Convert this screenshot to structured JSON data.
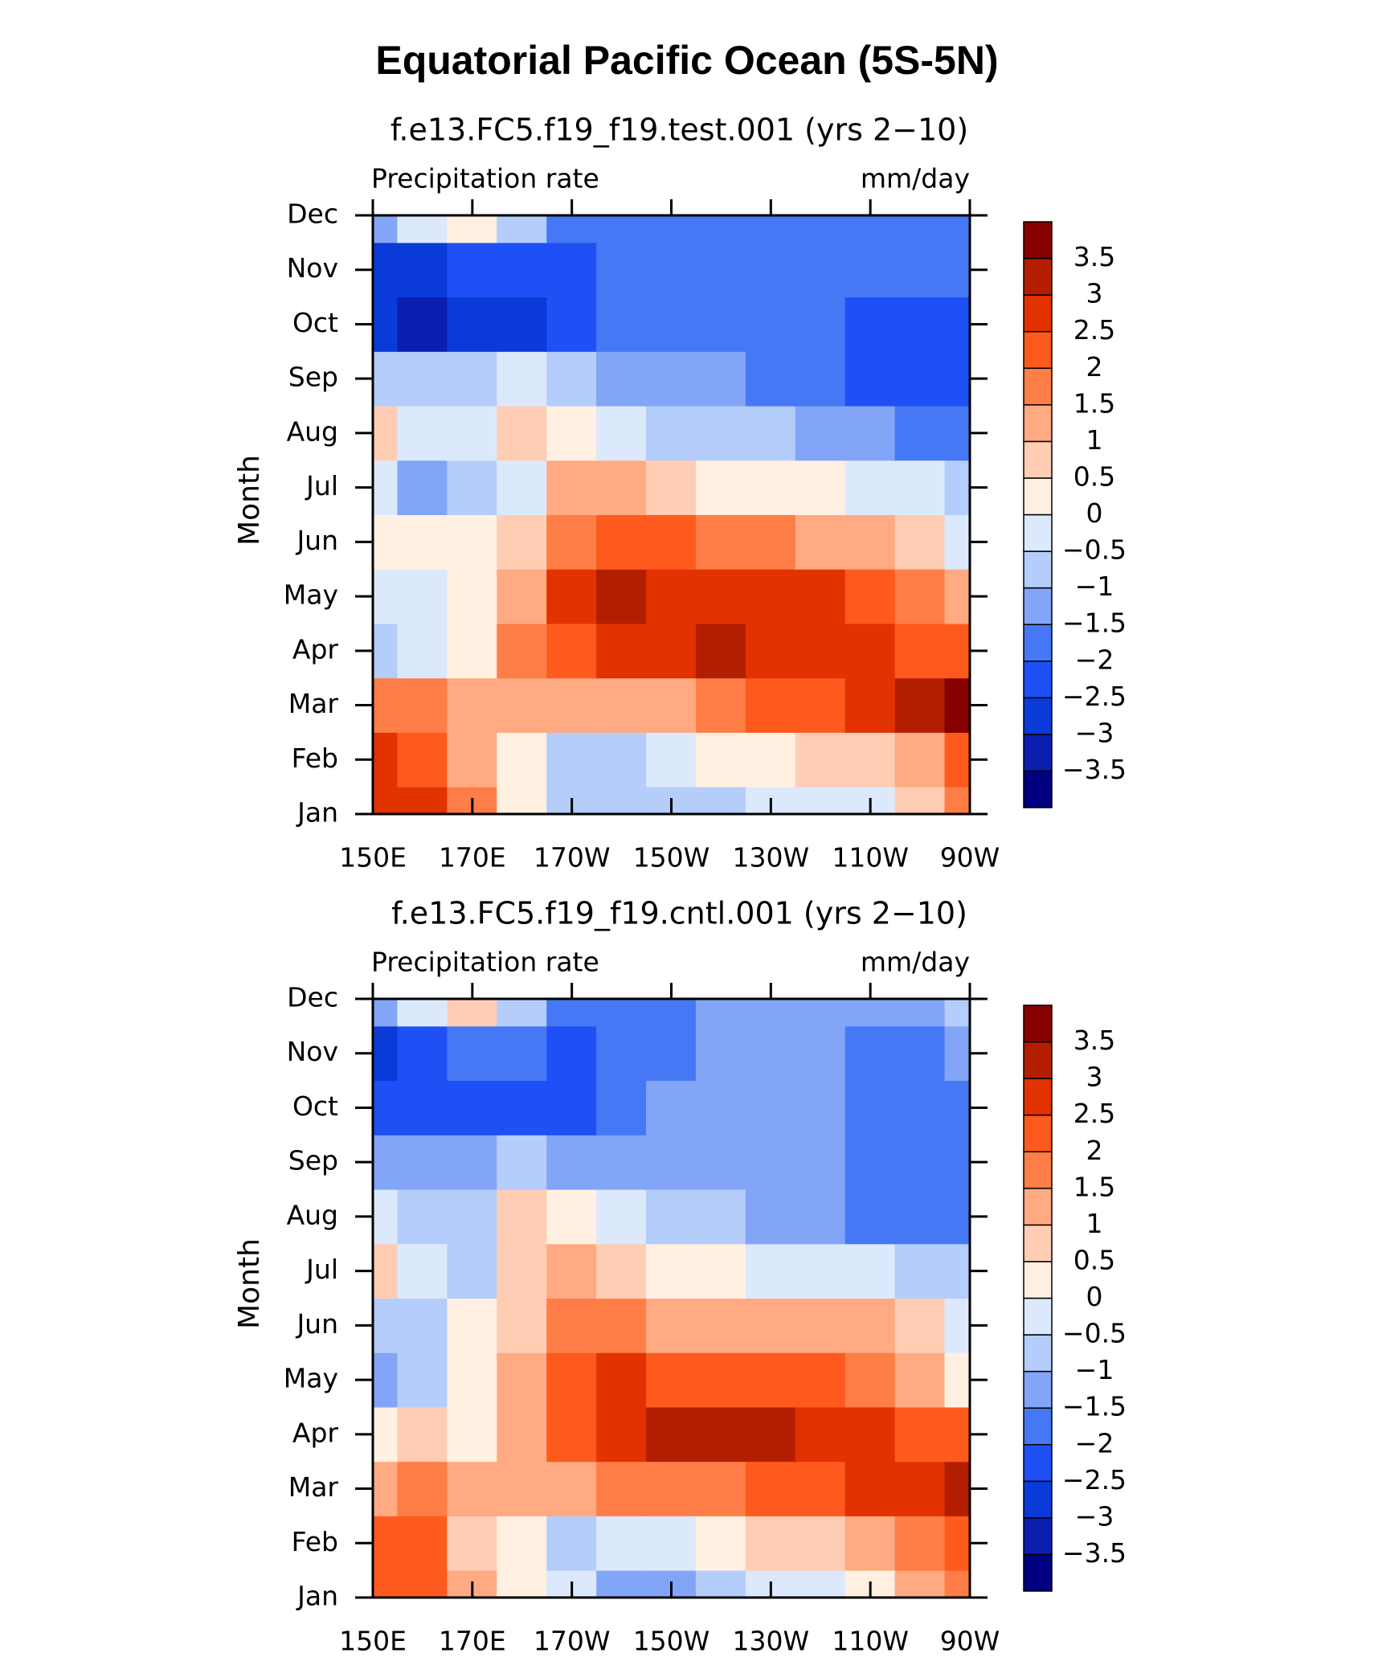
{
  "title": "Equatorial Pacific Ocean (5S-5N)",
  "chart_data": [
    {
      "type": "contour",
      "title": "f.e13.FC5.f19_f19.test.001 (yrs 2−10)",
      "left_label": "Precipitation rate",
      "right_label": "mm/day",
      "y_label": "Month",
      "categories": [
        "Jan",
        "Feb",
        "Mar",
        "Apr",
        "May",
        "Jun",
        "Jul",
        "Aug",
        "Sep",
        "Oct",
        "Nov",
        "Dec"
      ],
      "x": [
        150,
        160,
        170,
        180,
        190,
        200,
        210,
        220,
        230,
        240,
        250,
        260,
        270
      ],
      "xlim": [
        150,
        270
      ],
      "xticks": [
        {
          "value": 150,
          "label": "150E"
        },
        {
          "value": 170,
          "label": "170E"
        },
        {
          "value": 190,
          "label": "170W"
        },
        {
          "value": 210,
          "label": "150W"
        },
        {
          "value": 230,
          "label": "130W"
        },
        {
          "value": 250,
          "label": "110W"
        },
        {
          "value": 270,
          "label": "90W"
        }
      ],
      "z": [
        [
          2.5,
          2.5,
          1.5,
          0.3,
          -1,
          -0.7,
          -0.7,
          -0.7,
          -0.3,
          -0.3,
          -0.3,
          0.7,
          1.5
        ],
        [
          2.5,
          2.2,
          1.2,
          0.2,
          -0.8,
          -0.6,
          -0.3,
          0.2,
          0.4,
          0.6,
          0.8,
          1.4,
          2.2
        ],
        [
          1.8,
          1.8,
          1.3,
          1.4,
          1.0,
          1.2,
          1.4,
          1.8,
          2.2,
          2.4,
          2.6,
          3.0,
          3.6
        ],
        [
          -0.8,
          -0.3,
          0.3,
          1.8,
          2.3,
          2.6,
          2.9,
          3.0,
          2.8,
          2.8,
          2.7,
          2.4,
          2.2
        ],
        [
          -0.4,
          -0.2,
          0.2,
          1.3,
          2.6,
          3.0,
          2.9,
          2.8,
          2.7,
          2.6,
          2.3,
          1.8,
          1.2
        ],
        [
          0.3,
          0.3,
          0.4,
          0.8,
          1.7,
          2.2,
          2.0,
          1.7,
          1.5,
          1.3,
          1.0,
          0.7,
          -0.2
        ],
        [
          -0.2,
          -1.2,
          -0.7,
          -0.4,
          1.2,
          1.1,
          0.7,
          0.4,
          0.2,
          0.1,
          -0.2,
          -0.5,
          -0.8
        ],
        [
          0.6,
          -0.3,
          -0.5,
          0.8,
          0.3,
          -0.2,
          -0.6,
          -0.8,
          -1.0,
          -1.2,
          -1.5,
          -1.8,
          -1.6
        ],
        [
          -1.0,
          -0.9,
          -0.7,
          -0.5,
          -0.7,
          -1.1,
          -1.3,
          -1.5,
          -1.6,
          -1.8,
          -2.1,
          -2.2,
          -2.1
        ],
        [
          -2.8,
          -3.1,
          -2.6,
          -2.6,
          -2.2,
          -1.9,
          -1.6,
          -1.6,
          -1.7,
          -1.9,
          -2.1,
          -2.2,
          -2.1
        ],
        [
          -2.8,
          -2.6,
          -2.2,
          -2.3,
          -2.4,
          -1.8,
          -1.7,
          -1.8,
          -1.9,
          -1.8,
          -1.9,
          -1.8,
          -1.6
        ],
        [
          -1.5,
          -0.5,
          0.2,
          -0.8,
          -1.8,
          -1.8,
          -1.8,
          -1.7,
          -1.8,
          -1.7,
          -1.8,
          -1.9,
          -1.8
        ]
      ],
      "levels": [
        {
          "value": -3.5,
          "label": "−3.5"
        },
        {
          "value": -3,
          "label": "−3"
        },
        {
          "value": -2.5,
          "label": "−2.5"
        },
        {
          "value": -2,
          "label": "−2"
        },
        {
          "value": -1.5,
          "label": "−1.5"
        },
        {
          "value": -1,
          "label": "−1"
        },
        {
          "value": -0.5,
          "label": "−0.5"
        },
        0,
        0.5,
        1,
        1.5,
        2,
        2.5,
        3,
        3.5
      ],
      "colors": [
        "#000080",
        "#0a1eb0",
        "#0a3ad8",
        "#1e50f5",
        "#4678f5",
        "#82a5f8",
        "#b4cdfa",
        "#dce9fc",
        "#fff0e1",
        "#ffcdb4",
        "#ffaa82",
        "#ff7d46",
        "#ff5a1e",
        "#e13200",
        "#b41e00",
        "#870000"
      ]
    },
    {
      "type": "contour",
      "title": "f.e13.FC5.f19_f19.cntl.001 (yrs 2−10)",
      "left_label": "Precipitation rate",
      "right_label": "mm/day",
      "y_label": "Month",
      "categories": [
        "Jan",
        "Feb",
        "Mar",
        "Apr",
        "May",
        "Jun",
        "Jul",
        "Aug",
        "Sep",
        "Oct",
        "Nov",
        "Dec"
      ],
      "x": [
        150,
        160,
        170,
        180,
        190,
        200,
        210,
        220,
        230,
        240,
        250,
        260,
        270
      ],
      "xlim": [
        150,
        270
      ],
      "xticks": [
        {
          "value": 150,
          "label": "150E"
        },
        {
          "value": 170,
          "label": "170E"
        },
        {
          "value": 190,
          "label": "170W"
        },
        {
          "value": 210,
          "label": "150W"
        },
        {
          "value": 230,
          "label": "130W"
        },
        {
          "value": 250,
          "label": "110W"
        },
        {
          "value": 270,
          "label": "90W"
        }
      ],
      "z": [
        [
          2.4,
          2.3,
          1.0,
          0.3,
          -0.5,
          -1.3,
          -1.1,
          -0.8,
          -0.4,
          -0.1,
          0.4,
          1.0,
          1.8
        ],
        [
          2.4,
          2.1,
          0.8,
          0.2,
          -0.6,
          -0.4,
          -0.2,
          0.3,
          0.6,
          0.8,
          1.2,
          1.6,
          2.3
        ],
        [
          1.2,
          1.8,
          1.0,
          1.0,
          1.4,
          1.5,
          1.6,
          1.9,
          2.2,
          2.4,
          2.6,
          2.9,
          3.2
        ],
        [
          0.2,
          0.6,
          0.4,
          1.2,
          2.3,
          2.8,
          3.1,
          3.0,
          3.1,
          2.9,
          2.6,
          2.3,
          2.2
        ],
        [
          -1.2,
          -0.7,
          0.3,
          1.1,
          2.1,
          2.5,
          2.4,
          2.3,
          2.2,
          2.0,
          1.8,
          1.3,
          0.4
        ],
        [
          -1.0,
          -0.6,
          0.2,
          0.9,
          1.5,
          1.6,
          1.4,
          1.2,
          1.1,
          1.0,
          1.0,
          0.8,
          -0.3
        ],
        [
          0.6,
          -0.2,
          -0.6,
          0.8,
          1.2,
          0.6,
          0.3,
          0.1,
          -0.2,
          -0.3,
          -0.4,
          -0.6,
          -0.8
        ],
        [
          -0.2,
          -0.6,
          -0.7,
          0.5,
          0.3,
          -0.4,
          -0.7,
          -1.0,
          -1.1,
          -1.3,
          -1.6,
          -1.8,
          -1.7
        ],
        [
          -1.3,
          -1.4,
          -1.2,
          -0.8,
          -1.1,
          -1.4,
          -1.3,
          -1.3,
          -1.4,
          -1.4,
          -1.6,
          -1.8,
          -1.7
        ],
        [
          -2.3,
          -2.4,
          -2.2,
          -2.2,
          -2.3,
          -1.7,
          -1.4,
          -1.3,
          -1.3,
          -1.3,
          -1.7,
          -1.8,
          -1.9
        ],
        [
          -3.0,
          -2.3,
          -1.9,
          -2.0,
          -2.1,
          -1.9,
          -1.6,
          -1.4,
          -1.3,
          -1.4,
          -1.8,
          -1.8,
          -1.4
        ],
        [
          -1.2,
          -0.4,
          0.5,
          -1.0,
          -1.7,
          -1.9,
          -1.6,
          -1.4,
          -1.3,
          -1.3,
          -1.2,
          -1.1,
          -0.8
        ]
      ],
      "levels": [
        {
          "value": -3.5,
          "label": "−3.5"
        },
        {
          "value": -3,
          "label": "−3"
        },
        {
          "value": -2.5,
          "label": "−2.5"
        },
        {
          "value": -2,
          "label": "−2"
        },
        {
          "value": -1.5,
          "label": "−1.5"
        },
        {
          "value": -1,
          "label": "−1"
        },
        {
          "value": -0.5,
          "label": "−0.5"
        },
        0,
        0.5,
        1,
        1.5,
        2,
        2.5,
        3,
        3.5
      ],
      "colors": [
        "#000080",
        "#0a1eb0",
        "#0a3ad8",
        "#1e50f5",
        "#4678f5",
        "#82a5f8",
        "#b4cdfa",
        "#dce9fc",
        "#fff0e1",
        "#ffcdb4",
        "#ffaa82",
        "#ff7d46",
        "#ff5a1e",
        "#e13200",
        "#b41e00",
        "#870000"
      ]
    }
  ]
}
